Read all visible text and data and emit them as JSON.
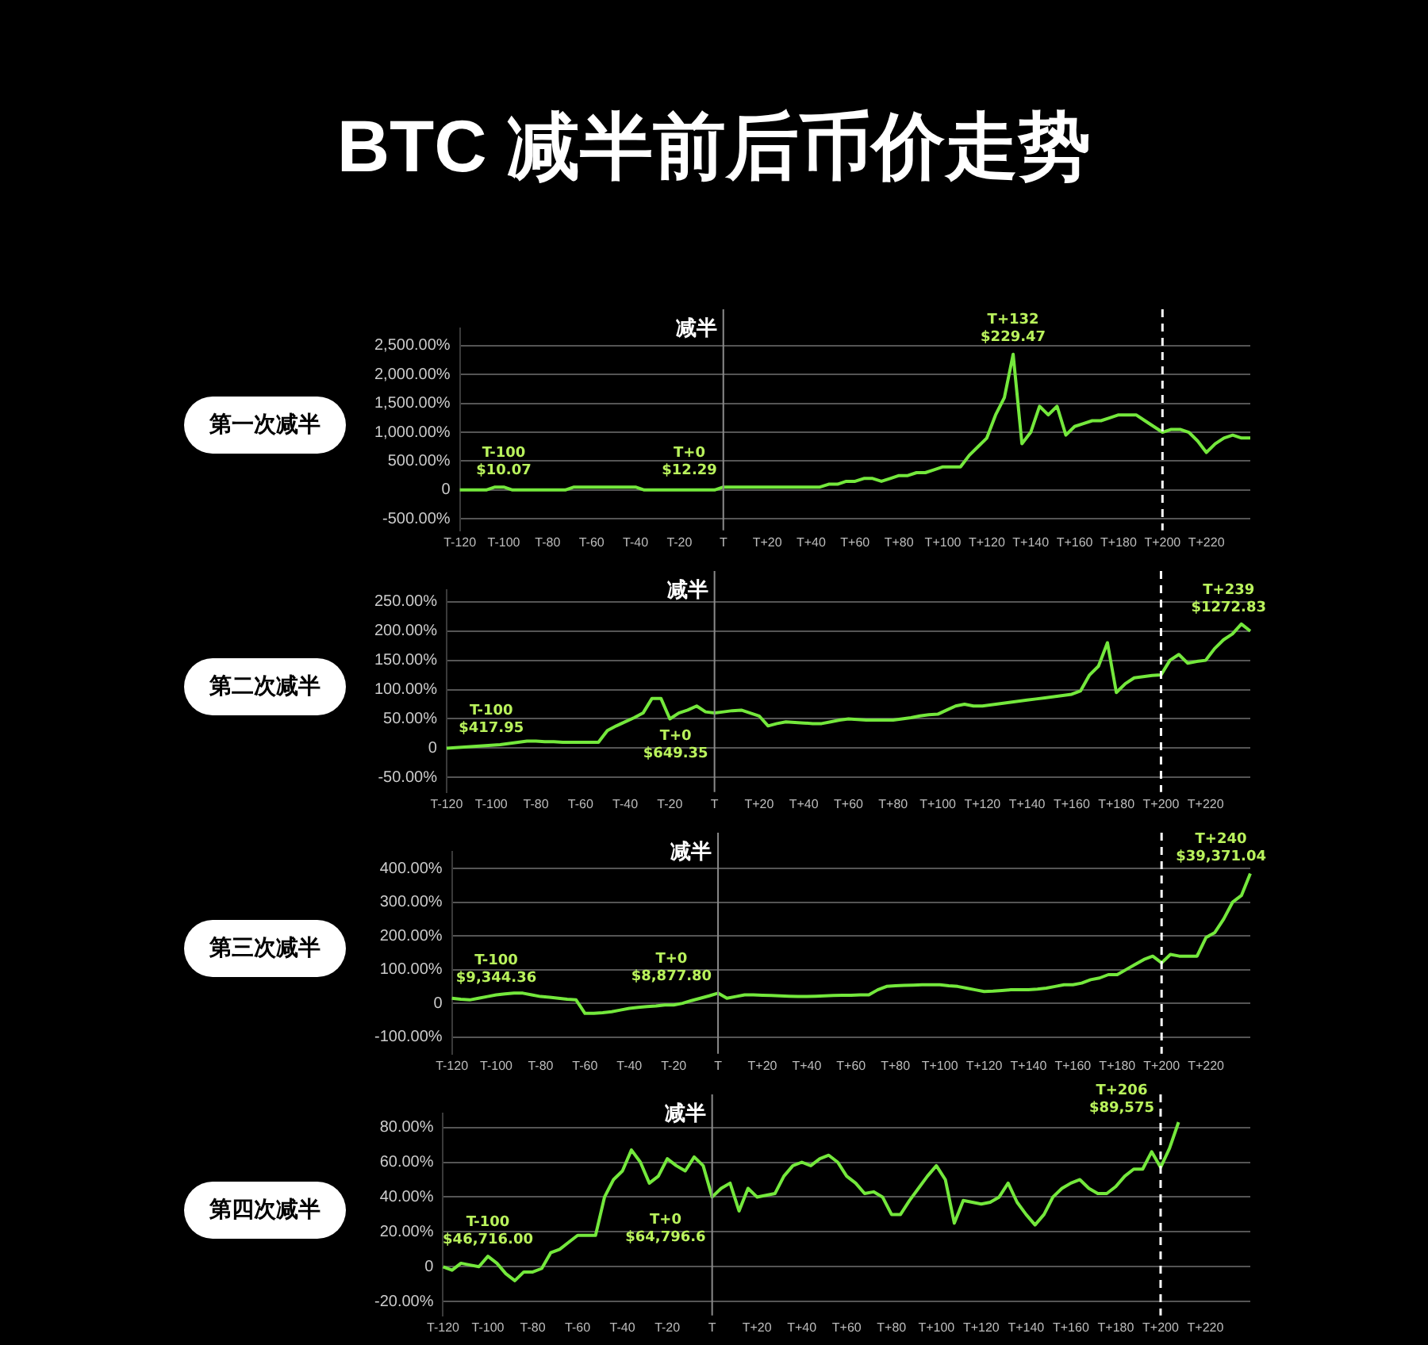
{
  "chart_data": [
    {
      "type": "line",
      "title": "BTC 减半前后币价走势",
      "subtitle": "第一次减半",
      "color": "#74e83c",
      "marker": "none",
      "grid": "y",
      "legend": false,
      "categories": [
        "T-120",
        null,
        null,
        null,
        null,
        "T-100",
        null,
        null,
        null,
        null,
        "T-80",
        null,
        null,
        null,
        null,
        "T-60",
        null,
        null,
        null,
        null,
        "T-40",
        null,
        null,
        null,
        null,
        "T-20",
        null,
        null,
        null,
        null,
        "T",
        null,
        null,
        null,
        null,
        "T+20",
        null,
        null,
        null,
        null,
        "T+40",
        null,
        null,
        null,
        null,
        "T+60",
        null,
        null,
        null,
        null,
        "T+80",
        null,
        null,
        null,
        null,
        "T+100",
        null,
        null,
        null,
        null,
        "T+120",
        null,
        null,
        null,
        null,
        "T+140",
        null,
        null,
        null,
        null,
        "T+160",
        null,
        null,
        null,
        null,
        "T+180",
        null,
        null,
        null,
        null,
        "T+200",
        null,
        null,
        null,
        null,
        "T+220",
        null,
        null,
        null,
        null,
        null
      ],
      "ylim": [
        -700,
        2800
      ],
      "yticks": [
        {
          "value": -500,
          "label": "-500.00%"
        },
        {
          "value": 0,
          "label": "0"
        },
        {
          "value": 500,
          "label": "500.00%"
        },
        {
          "value": 1000,
          "label": "1,000.00%"
        },
        {
          "value": 1500,
          "label": "1,500.00%"
        },
        {
          "value": 2000,
          "label": "2,000.00%"
        },
        {
          "value": 2500,
          "label": "2,500.00%"
        }
      ],
      "values": [
        0,
        0,
        0,
        0,
        50,
        50,
        0,
        0,
        0,
        0,
        0,
        0,
        0,
        50,
        50,
        50,
        50,
        50,
        50,
        50,
        50,
        0,
        0,
        0,
        0,
        0,
        0,
        0,
        0,
        0,
        50,
        50,
        50,
        50,
        50,
        50,
        50,
        50,
        50,
        50,
        50,
        50,
        100,
        100,
        150,
        150,
        200,
        200,
        150,
        200,
        250,
        250,
        300,
        300,
        350,
        400,
        400,
        400,
        600,
        750,
        900,
        1300,
        1600,
        2350,
        800,
        1000,
        1450,
        1300,
        1450,
        950,
        1100,
        1150,
        1200,
        1200,
        1250,
        1300,
        1300,
        1300,
        1200,
        1100,
        1000,
        1050,
        1050,
        1000,
        850,
        650,
        800,
        900,
        950,
        900,
        900
      ],
      "ref_lines": [
        {
          "axis": "x",
          "value": "T",
          "label": "减半",
          "color": "#8a8a8a",
          "line_style": "solid"
        },
        {
          "axis": "x",
          "value": "T+200",
          "color": "#ffffff",
          "line_style": "dashed"
        }
      ],
      "annotations": [
        {
          "text": "T-100\n$10.07",
          "x": "T-100",
          "y": 50
        },
        {
          "text": "T+0\n$12.29",
          "x": "T",
          "y": 50
        },
        {
          "text": "T+132\n$229.47",
          "y": 2350
        }
      ]
    },
    {
      "type": "line",
      "subtitle": "第二次减半",
      "color": "#74e83c",
      "marker": "none",
      "grid": "y",
      "legend": false,
      "categories": [
        "T-120",
        null,
        null,
        null,
        null,
        "T-100",
        null,
        null,
        null,
        null,
        "T-80",
        null,
        null,
        null,
        null,
        "T-60",
        null,
        null,
        null,
        null,
        "T-40",
        null,
        null,
        null,
        null,
        "T-20",
        null,
        null,
        null,
        null,
        "T",
        null,
        null,
        null,
        null,
        "T+20",
        null,
        null,
        null,
        null,
        "T+40",
        null,
        null,
        null,
        null,
        "T+60",
        null,
        null,
        null,
        null,
        "T+80",
        null,
        null,
        null,
        null,
        "T+100",
        null,
        null,
        null,
        null,
        "T+120",
        null,
        null,
        null,
        null,
        "T+140",
        null,
        null,
        null,
        null,
        "T+160",
        null,
        null,
        null,
        null,
        "T+180",
        null,
        null,
        null,
        null,
        "T+200",
        null,
        null,
        null,
        null,
        "T+220",
        null,
        null,
        null,
        null,
        null
      ],
      "ylim": [
        -75,
        270
      ],
      "yticks": [
        {
          "value": -50,
          "label": "-50.00%"
        },
        {
          "value": 0,
          "label": "0"
        },
        {
          "value": 50,
          "label": "50.00%"
        },
        {
          "value": 100,
          "label": "100.00%"
        },
        {
          "value": 150,
          "label": "150.00%"
        },
        {
          "value": 200,
          "label": "200.00%"
        },
        {
          "value": 250,
          "label": "250.00%"
        }
      ],
      "values": [
        0,
        1,
        2,
        3,
        4,
        5,
        6,
        8,
        10,
        12,
        12,
        11,
        11,
        10,
        10,
        10,
        10,
        10,
        30,
        38,
        45,
        52,
        60,
        85,
        85,
        50,
        60,
        65,
        72,
        62,
        60,
        62,
        64,
        65,
        60,
        55,
        38,
        42,
        45,
        44,
        43,
        42,
        42,
        45,
        48,
        50,
        49,
        48,
        48,
        48,
        48,
        50,
        52,
        55,
        57,
        58,
        65,
        72,
        75,
        72,
        72,
        74,
        76,
        78,
        80,
        82,
        84,
        86,
        88,
        90,
        92,
        98,
        125,
        140,
        180,
        95,
        110,
        120,
        122,
        124,
        125,
        150,
        160,
        145,
        148,
        150,
        170,
        185,
        195,
        212,
        200
      ],
      "ref_lines": [
        {
          "axis": "x",
          "value": "T",
          "label": "减半",
          "color": "#8a8a8a",
          "line_style": "solid"
        },
        {
          "axis": "x",
          "value": "T+200",
          "color": "#ffffff",
          "line_style": "dashed"
        }
      ],
      "annotations": [
        {
          "text": "T-100\n$417.95",
          "x": "T-100",
          "y": 5
        },
        {
          "text": "T+0\n$649.35",
          "x": "T",
          "y": 60
        },
        {
          "text": "T+239\n$1272.83",
          "y": 212
        }
      ]
    },
    {
      "type": "line",
      "subtitle": "第三次减半",
      "color": "#74e83c",
      "marker": "none",
      "grid": "y",
      "legend": false,
      "categories": [
        "T-120",
        null,
        null,
        null,
        null,
        "T-100",
        null,
        null,
        null,
        null,
        "T-80",
        null,
        null,
        null,
        null,
        "T-60",
        null,
        null,
        null,
        null,
        "T-40",
        null,
        null,
        null,
        null,
        "T-20",
        null,
        null,
        null,
        null,
        "T",
        null,
        null,
        null,
        null,
        "T+20",
        null,
        null,
        null,
        null,
        "T+40",
        null,
        null,
        null,
        null,
        "T+60",
        null,
        null,
        null,
        null,
        "T+80",
        null,
        null,
        null,
        null,
        "T+100",
        null,
        null,
        null,
        null,
        "T+120",
        null,
        null,
        null,
        null,
        "T+140",
        null,
        null,
        null,
        null,
        "T+160",
        null,
        null,
        null,
        null,
        "T+180",
        null,
        null,
        null,
        null,
        "T+200",
        null,
        null,
        null,
        null,
        "T+220",
        null,
        null,
        null,
        null,
        null
      ],
      "ylim": [
        -150,
        450
      ],
      "yticks": [
        {
          "value": -100,
          "label": "-100.00%"
        },
        {
          "value": 0,
          "label": "0"
        },
        {
          "value": 100,
          "label": "100.00%"
        },
        {
          "value": 200,
          "label": "200.00%"
        },
        {
          "value": 300,
          "label": "300.00%"
        },
        {
          "value": 400,
          "label": "400.00%"
        }
      ],
      "values": [
        15,
        12,
        10,
        15,
        20,
        25,
        28,
        30,
        30,
        25,
        20,
        18,
        15,
        12,
        10,
        -30,
        -30,
        -28,
        -25,
        -20,
        -15,
        -12,
        -10,
        -8,
        -5,
        -5,
        0,
        8,
        15,
        22,
        30,
        15,
        20,
        25,
        25,
        24,
        23,
        22,
        21,
        20,
        20,
        21,
        22,
        23,
        24,
        24,
        25,
        25,
        40,
        50,
        52,
        53,
        54,
        55,
        55,
        55,
        52,
        50,
        45,
        40,
        35,
        36,
        38,
        40,
        40,
        40,
        42,
        45,
        50,
        55,
        55,
        60,
        70,
        75,
        85,
        85,
        100,
        115,
        130,
        140,
        120,
        145,
        140,
        140,
        140,
        195,
        210,
        250,
        300,
        320,
        385
      ],
      "ref_lines": [
        {
          "axis": "x",
          "value": "T",
          "label": "减半",
          "color": "#8a8a8a",
          "line_style": "solid"
        },
        {
          "axis": "x",
          "value": "T+200",
          "color": "#ffffff",
          "line_style": "dashed"
        }
      ],
      "annotations": [
        {
          "text": "T-100\n$9,344.36",
          "x": "T-100",
          "y": 25
        },
        {
          "text": "T+0\n$8,877.80",
          "x": "T",
          "y": 30
        },
        "T+240\n$39,371.04"
      ]
    },
    {
      "type": "line",
      "subtitle": "第四次减半",
      "color": "#74e83c",
      "marker": "none",
      "grid": "y",
      "legend": false,
      "categories": [
        "T-120",
        null,
        null,
        null,
        null,
        "T-100",
        null,
        null,
        null,
        null,
        "T-80",
        null,
        null,
        null,
        null,
        "T-60",
        null,
        null,
        null,
        null,
        "T-40",
        null,
        null,
        null,
        null,
        "T-20",
        null,
        null,
        null,
        null,
        "T",
        null,
        null,
        null,
        null,
        "T+20",
        null,
        null,
        null,
        null,
        "T+40",
        null,
        null,
        null,
        null,
        "T+60",
        null,
        null,
        null,
        null,
        "T+80",
        null,
        null,
        null,
        null,
        "T+100",
        null,
        null,
        null,
        null,
        "T+120",
        null,
        null,
        null,
        null,
        "T+140",
        null,
        null,
        null,
        null,
        "T+160",
        null,
        null,
        null,
        null,
        "T+180",
        null,
        null,
        null,
        null,
        "T+200",
        null,
        null,
        null,
        null,
        "T+220",
        null,
        null,
        null,
        null,
        null
      ],
      "ylim": [
        -28,
        88
      ],
      "yticks": [
        {
          "value": -20,
          "label": "-20.00%"
        },
        {
          "value": 0,
          "label": "0"
        },
        {
          "value": 20,
          "label": "20.00%"
        },
        {
          "value": 40,
          "label": "40.00%"
        },
        {
          "value": 60,
          "label": "60.00%"
        },
        {
          "value": 80,
          "label": "80.00%"
        }
      ],
      "values": [
        0,
        -2,
        2,
        1,
        0,
        6,
        2,
        -4,
        -8,
        -3,
        -3,
        -1,
        8,
        10,
        14,
        18,
        18,
        18,
        40,
        50,
        55,
        67,
        60,
        48,
        52,
        62,
        58,
        55,
        63,
        58,
        40,
        45,
        48,
        32,
        45,
        40,
        41,
        42,
        52,
        58,
        60,
        58,
        62,
        64,
        60,
        52,
        48,
        42,
        43,
        40,
        30,
        30,
        38,
        45,
        52,
        58,
        50,
        25,
        38,
        37,
        36,
        37,
        40,
        48,
        37,
        30,
        24,
        30,
        40,
        45,
        48,
        50,
        45,
        42,
        42,
        46,
        52,
        56,
        56,
        66,
        57,
        68,
        83,
        null,
        null,
        null,
        null,
        null,
        null,
        null,
        null
      ],
      "ref_lines": [
        {
          "axis": "x",
          "value": "T",
          "label": "减半",
          "color": "#8a8a8a",
          "line_style": "solid"
        },
        {
          "axis": "x",
          "value": "T+200",
          "color": "#ffffff",
          "line_style": "dashed"
        }
      ],
      "annotations": [
        {
          "text": "T-100\n$46,716.00",
          "x": "T-100",
          "y": 6
        },
        {
          "text": "T+0\n$64,796.6",
          "x": "T",
          "y": 40
        },
        "T+206\n$89,575"
      ]
    }
  ]
}
